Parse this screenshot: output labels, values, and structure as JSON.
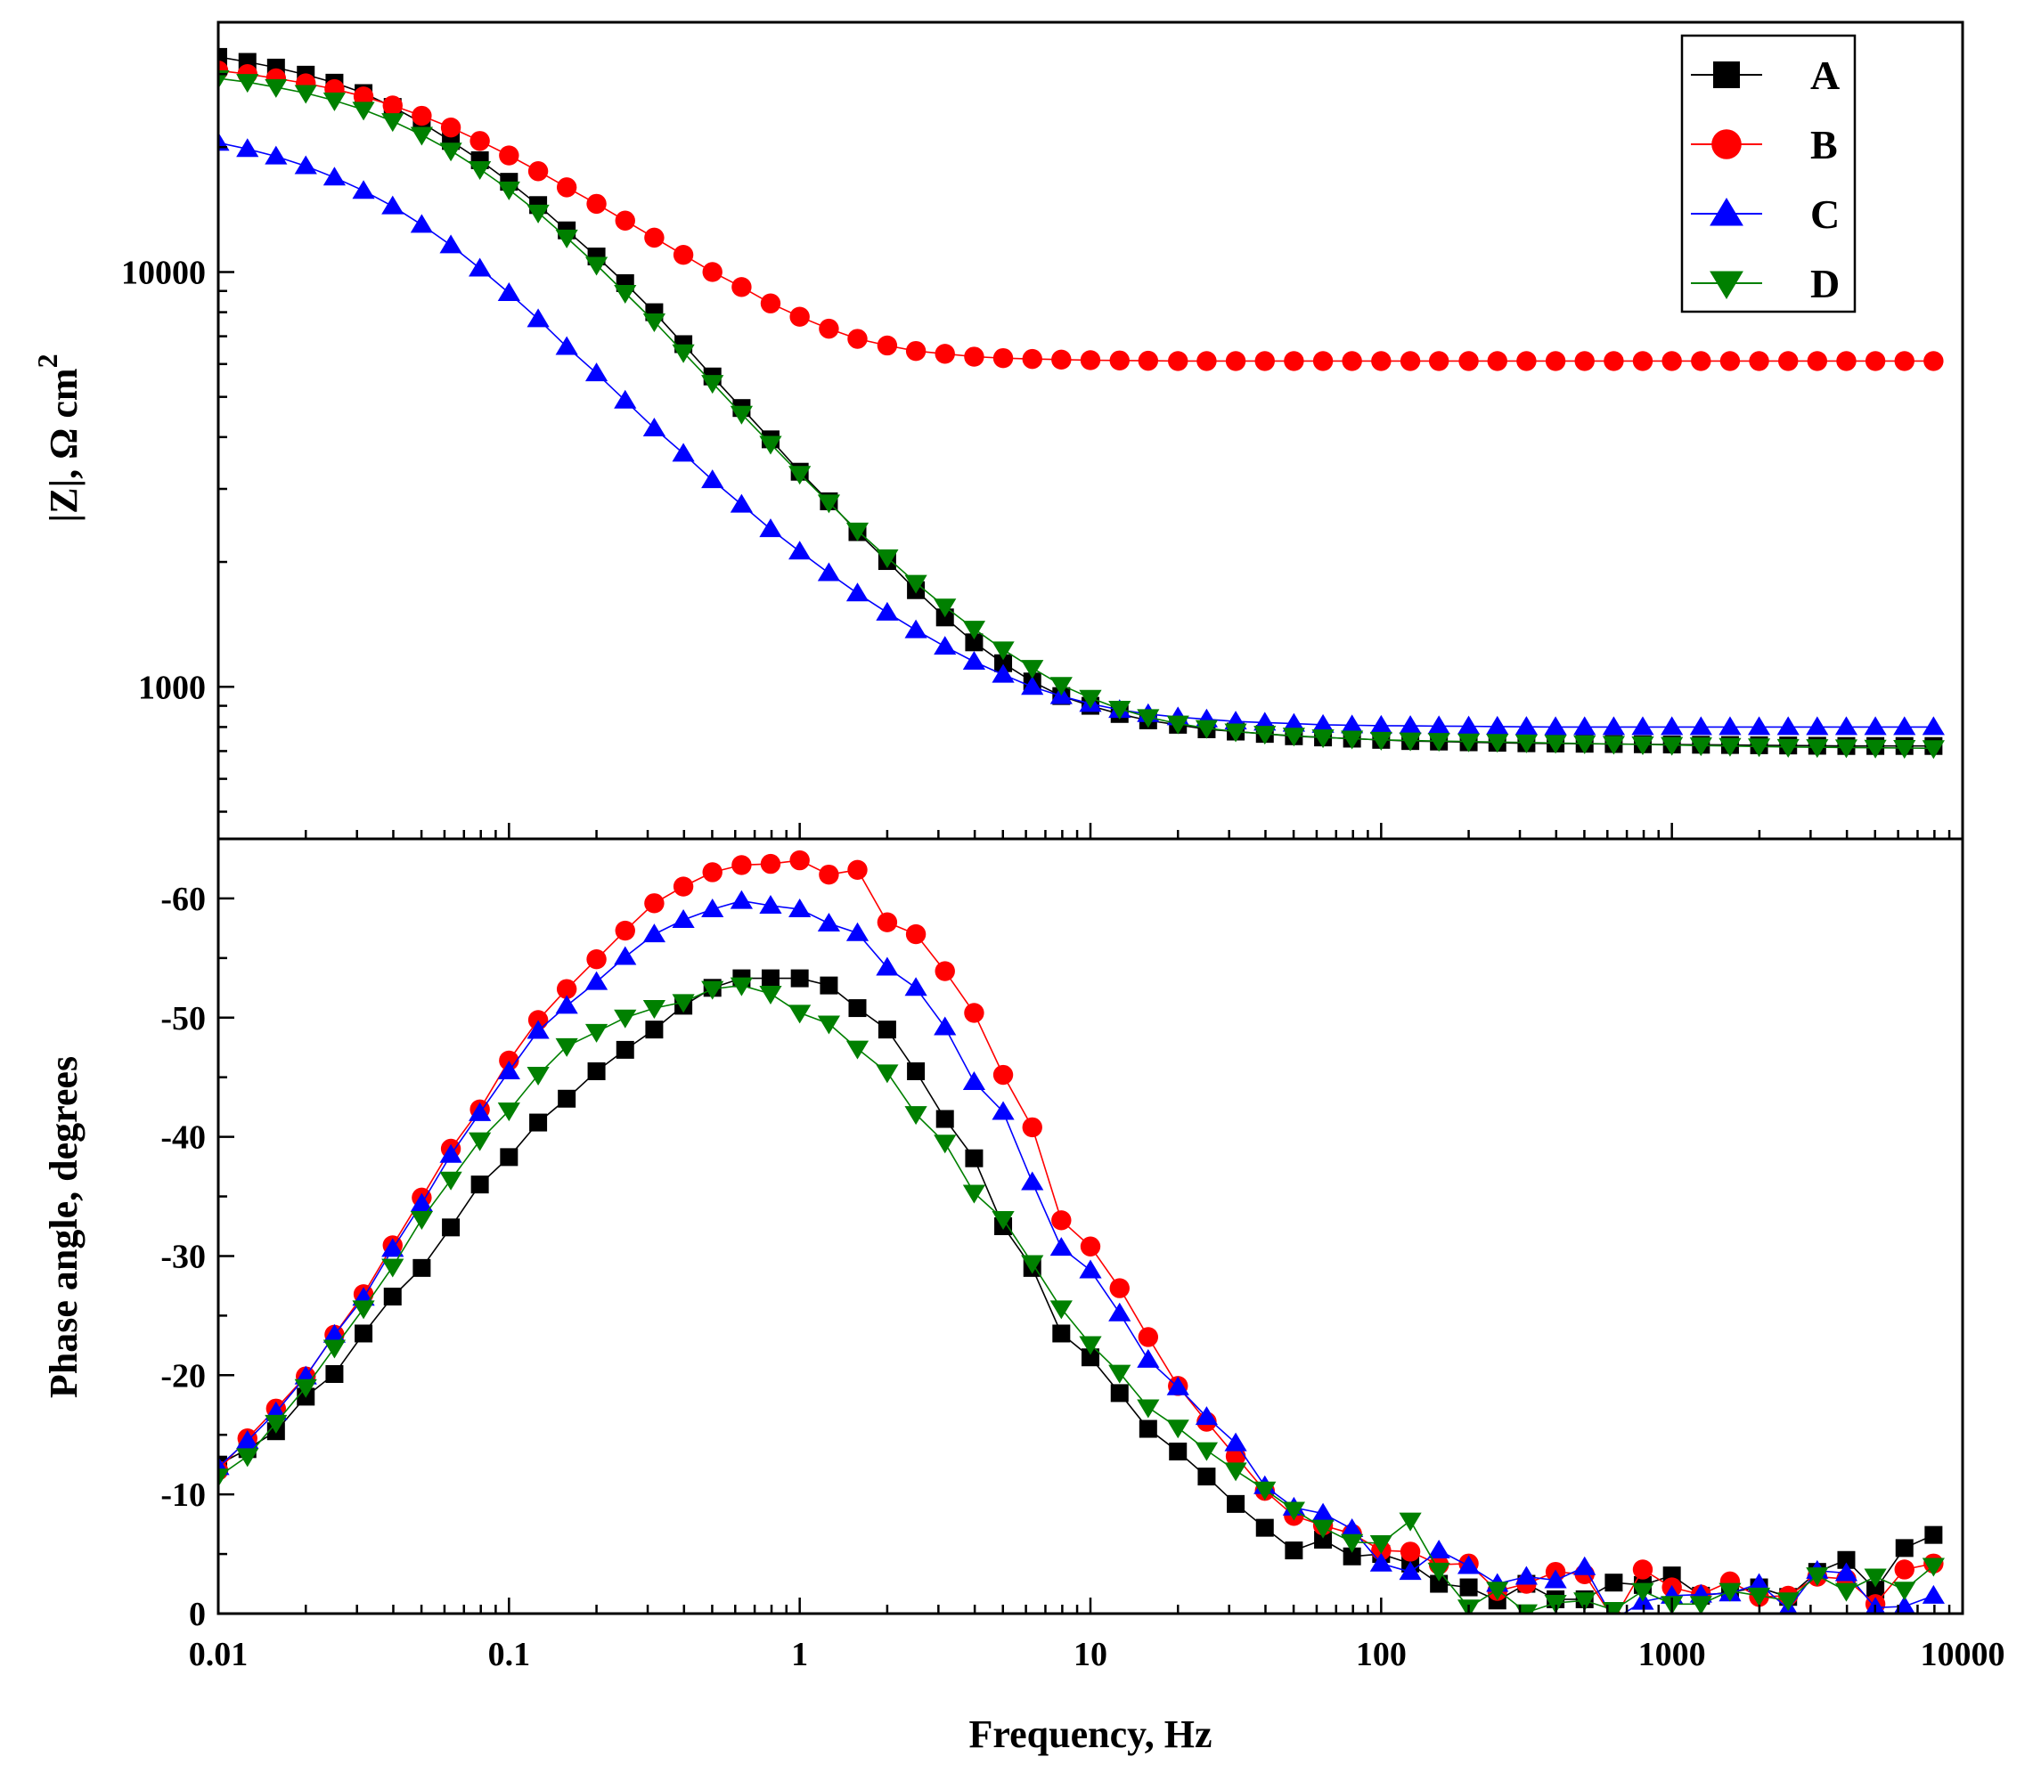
{
  "chart_data": {
    "type": "line",
    "x_scale": "log",
    "xlabel": "Frequency, Hz",
    "xlim": [
      0.01,
      10000
    ],
    "x_ticks": [
      "0.01",
      "0.1",
      "1",
      "10",
      "100",
      "1000",
      "10000"
    ],
    "frequencies": [
      0.01,
      0.0126,
      0.0158,
      0.02,
      0.0251,
      0.0316,
      0.0398,
      0.0501,
      0.0631,
      0.0794,
      0.1,
      0.126,
      0.158,
      0.2,
      0.251,
      0.316,
      0.398,
      0.501,
      0.631,
      0.794,
      1,
      1.26,
      1.58,
      2,
      2.51,
      3.16,
      3.98,
      5.01,
      6.31,
      7.94,
      10,
      12.6,
      15.8,
      20,
      25.1,
      31.6,
      39.8,
      50.1,
      63.1,
      79.4,
      100,
      126,
      158,
      200,
      251,
      316,
      398,
      501,
      631,
      794,
      1000,
      1259,
      1585,
      1995,
      2512,
      3162,
      3981,
      5012,
      6310,
      7943
    ],
    "legend": {
      "location": "top-right",
      "entries": [
        {
          "label": "A",
          "color": "#000000",
          "marker": "square"
        },
        {
          "label": "B",
          "color": "#ff0000",
          "marker": "circle"
        },
        {
          "label": "C",
          "color": "#0000ff",
          "marker": "triangle-up"
        },
        {
          "label": "D",
          "color": "#008000",
          "marker": "triangle-down"
        }
      ]
    },
    "panels": [
      {
        "name": "impedance-modulus",
        "ylabel": "|Z|, Ω cm",
        "ylabel_superscript": "2",
        "y_scale": "log",
        "ylim": [
          430,
          40000
        ],
        "y_ticks": [
          "1000",
          "10000"
        ],
        "series": [
          {
            "name": "A",
            "values": [
              33000,
              32100,
              31100,
              29900,
              28600,
              27000,
              25000,
              22900,
              20700,
              18600,
              16500,
              14500,
              12600,
              10900,
              9400,
              8000,
              6700,
              5600,
              4700,
              3950,
              3300,
              2800,
              2360,
              2010,
              1710,
              1470,
              1280,
              1140,
              1030,
              950,
              900,
              860,
              830,
              810,
              790,
              780,
              770,
              760,
              755,
              750,
              745,
              740,
              738,
              735,
              733,
              731,
              730,
              729,
              728,
              727,
              726,
              725,
              724,
              723,
              722,
              721,
              720,
              720,
              720,
              720
            ]
          },
          {
            "name": "B",
            "values": [
              30600,
              30000,
              29300,
              28500,
              27600,
              26500,
              25200,
              23800,
              22300,
              20700,
              19100,
              17500,
              16000,
              14600,
              13300,
              12100,
              11000,
              10000,
              9200,
              8400,
              7800,
              7300,
              6900,
              6650,
              6450,
              6350,
              6250,
              6200,
              6170,
              6150,
              6130,
              6120,
              6110,
              6100,
              6100,
              6100,
              6100,
              6100,
              6100,
              6100,
              6100,
              6100,
              6100,
              6100,
              6100,
              6100,
              6100,
              6100,
              6100,
              6100,
              6100,
              6100,
              6100,
              6100,
              6100,
              6100,
              6100,
              6100,
              6100,
              6100
            ]
          },
          {
            "name": "C",
            "values": [
              20500,
              19800,
              19000,
              18000,
              16900,
              15700,
              14400,
              13000,
              11600,
              10200,
              8900,
              7700,
              6600,
              5700,
              4900,
              4200,
              3650,
              3150,
              2750,
              2400,
              2120,
              1880,
              1680,
              1510,
              1370,
              1250,
              1150,
              1070,
              1000,
              950,
              910,
              880,
              860,
              845,
              835,
              825,
              820,
              815,
              810,
              808,
              806,
              805,
              804,
              803,
              802,
              801,
              800,
              800,
              800,
              800,
              800,
              800,
              800,
              800,
              800,
              800,
              800,
              800,
              800,
              800
            ]
          },
          {
            "name": "D",
            "values": [
              29300,
              28700,
              27900,
              27000,
              25900,
              24600,
              23100,
              21400,
              19600,
              17700,
              15800,
              13900,
              12100,
              10400,
              8900,
              7600,
              6400,
              5400,
              4550,
              3850,
              3260,
              2780,
              2380,
              2050,
              1780,
              1560,
              1380,
              1230,
              1110,
              1010,
              940,
              885,
              845,
              815,
              795,
              780,
              770,
              762,
              755,
              750,
              745,
              742,
              740,
              738,
              736,
              734,
              732,
              730,
              728,
              726,
              724,
              722,
              720,
              718,
              716,
              715,
              714,
              713,
              712,
              711
            ]
          }
        ]
      },
      {
        "name": "phase-angle",
        "ylabel": "Phase angle, degrees",
        "y_scale": "linear",
        "ylim": [
          0,
          -65
        ],
        "y_ticks": [
          "0",
          "-10",
          "-20",
          "-30",
          "-40",
          "-50",
          "-60"
        ],
        "series": [
          {
            "name": "A",
            "values": [
              -12.5,
              -13.8,
              -15.3,
              -18.2,
              -20.1,
              -23.5,
              -26.6,
              -29.0,
              -32.4,
              -36.0,
              -38.3,
              -41.2,
              -43.2,
              -45.5,
              -47.3,
              -49.0,
              -51.0,
              -52.5,
              -53.3,
              -53.3,
              -53.3,
              -52.7,
              -50.8,
              -49.0,
              -45.5,
              -41.5,
              -38.2,
              -32.5,
              -29.0,
              -23.5,
              -21.5,
              -18.5,
              -15.5,
              -13.6,
              -11.5,
              -9.2,
              -7.2,
              -5.3,
              -6.2,
              -4.8,
              -5.0,
              -4.2,
              -2.5,
              -2.2,
              -1.1,
              -2.5,
              -1.2,
              -1.2,
              -2.6,
              -2.4,
              -3.2,
              -1.5,
              -1.8,
              -2.2,
              -1.4,
              -3.5,
              -4.5,
              -2.0,
              -5.5,
              -6.6
            ]
          },
          {
            "name": "B",
            "values": [
              -12.0,
              -14.7,
              -17.2,
              -19.9,
              -23.4,
              -26.8,
              -30.9,
              -34.9,
              -39.0,
              -42.3,
              -46.4,
              -49.8,
              -52.4,
              -54.9,
              -57.3,
              -59.6,
              -61.0,
              -62.2,
              -62.8,
              -62.9,
              -63.2,
              -62.0,
              -62.4,
              -58.0,
              -57.0,
              -53.9,
              -50.4,
              -45.2,
              -40.8,
              -33.0,
              -30.8,
              -27.3,
              -23.2,
              -19.1,
              -16.1,
              -13.2,
              -10.3,
              -8.2,
              -7.4,
              -6.7,
              -5.3,
              -5.2,
              -4.1,
              -4.2,
              -1.9,
              -2.5,
              -3.5,
              -3.3,
              0.5,
              -3.7,
              -2.2,
              -1.6,
              -2.7,
              -1.4,
              -1.5,
              -3.1,
              -2.9,
              -0.8,
              -3.7,
              -4.2
            ]
          },
          {
            "name": "C",
            "values": [
              -12.3,
              -14.5,
              -16.9,
              -19.9,
              -23.4,
              -26.5,
              -30.6,
              -34.4,
              -38.5,
              -42.0,
              -45.5,
              -48.9,
              -51.0,
              -53.0,
              -55.1,
              -57.0,
              -58.2,
              -59.1,
              -59.8,
              -59.4,
              -59.1,
              -57.9,
              -57.1,
              -54.2,
              -52.5,
              -49.2,
              -44.6,
              -42.1,
              -36.2,
              -30.7,
              -28.8,
              -25.2,
              -21.3,
              -19.0,
              -16.5,
              -14.3,
              -10.7,
              -8.9,
              -8.4,
              -7.1,
              -4.2,
              -3.5,
              -5.3,
              -4.0,
              -2.5,
              -3.1,
              -2.8,
              -3.9,
              0.5,
              -1.0,
              -1.5,
              -1.6,
              -1.7,
              -2.5,
              -0.4,
              -3.6,
              -3.4,
              -0.5,
              -0.6,
              -1.5
            ]
          },
          {
            "name": "D",
            "values": [
              -11.5,
              -13.2,
              -16.0,
              -19.0,
              -22.3,
              -25.6,
              -29.1,
              -33.1,
              -36.4,
              -39.7,
              -42.2,
              -45.2,
              -47.6,
              -48.8,
              -50.0,
              -50.8,
              -51.3,
              -52.4,
              -52.7,
              -52.0,
              -50.4,
              -49.5,
              -47.4,
              -45.4,
              -41.9,
              -39.5,
              -35.3,
              -33.1,
              -29.4,
              -25.6,
              -22.6,
              -20.2,
              -17.3,
              -15.6,
              -13.7,
              -12.0,
              -10.4,
              -8.7,
              -7.2,
              -6.0,
              -5.9,
              -7.8,
              -3.6,
              -0.5,
              -2.0,
              -0.1,
              -0.9,
              -1.1,
              -0.3,
              -1.9,
              -0.8,
              -0.8,
              -1.9,
              -1.5,
              -1.1,
              -3.2,
              -1.9,
              -3.1,
              -2.0,
              -4.0
            ]
          }
        ]
      }
    ]
  }
}
